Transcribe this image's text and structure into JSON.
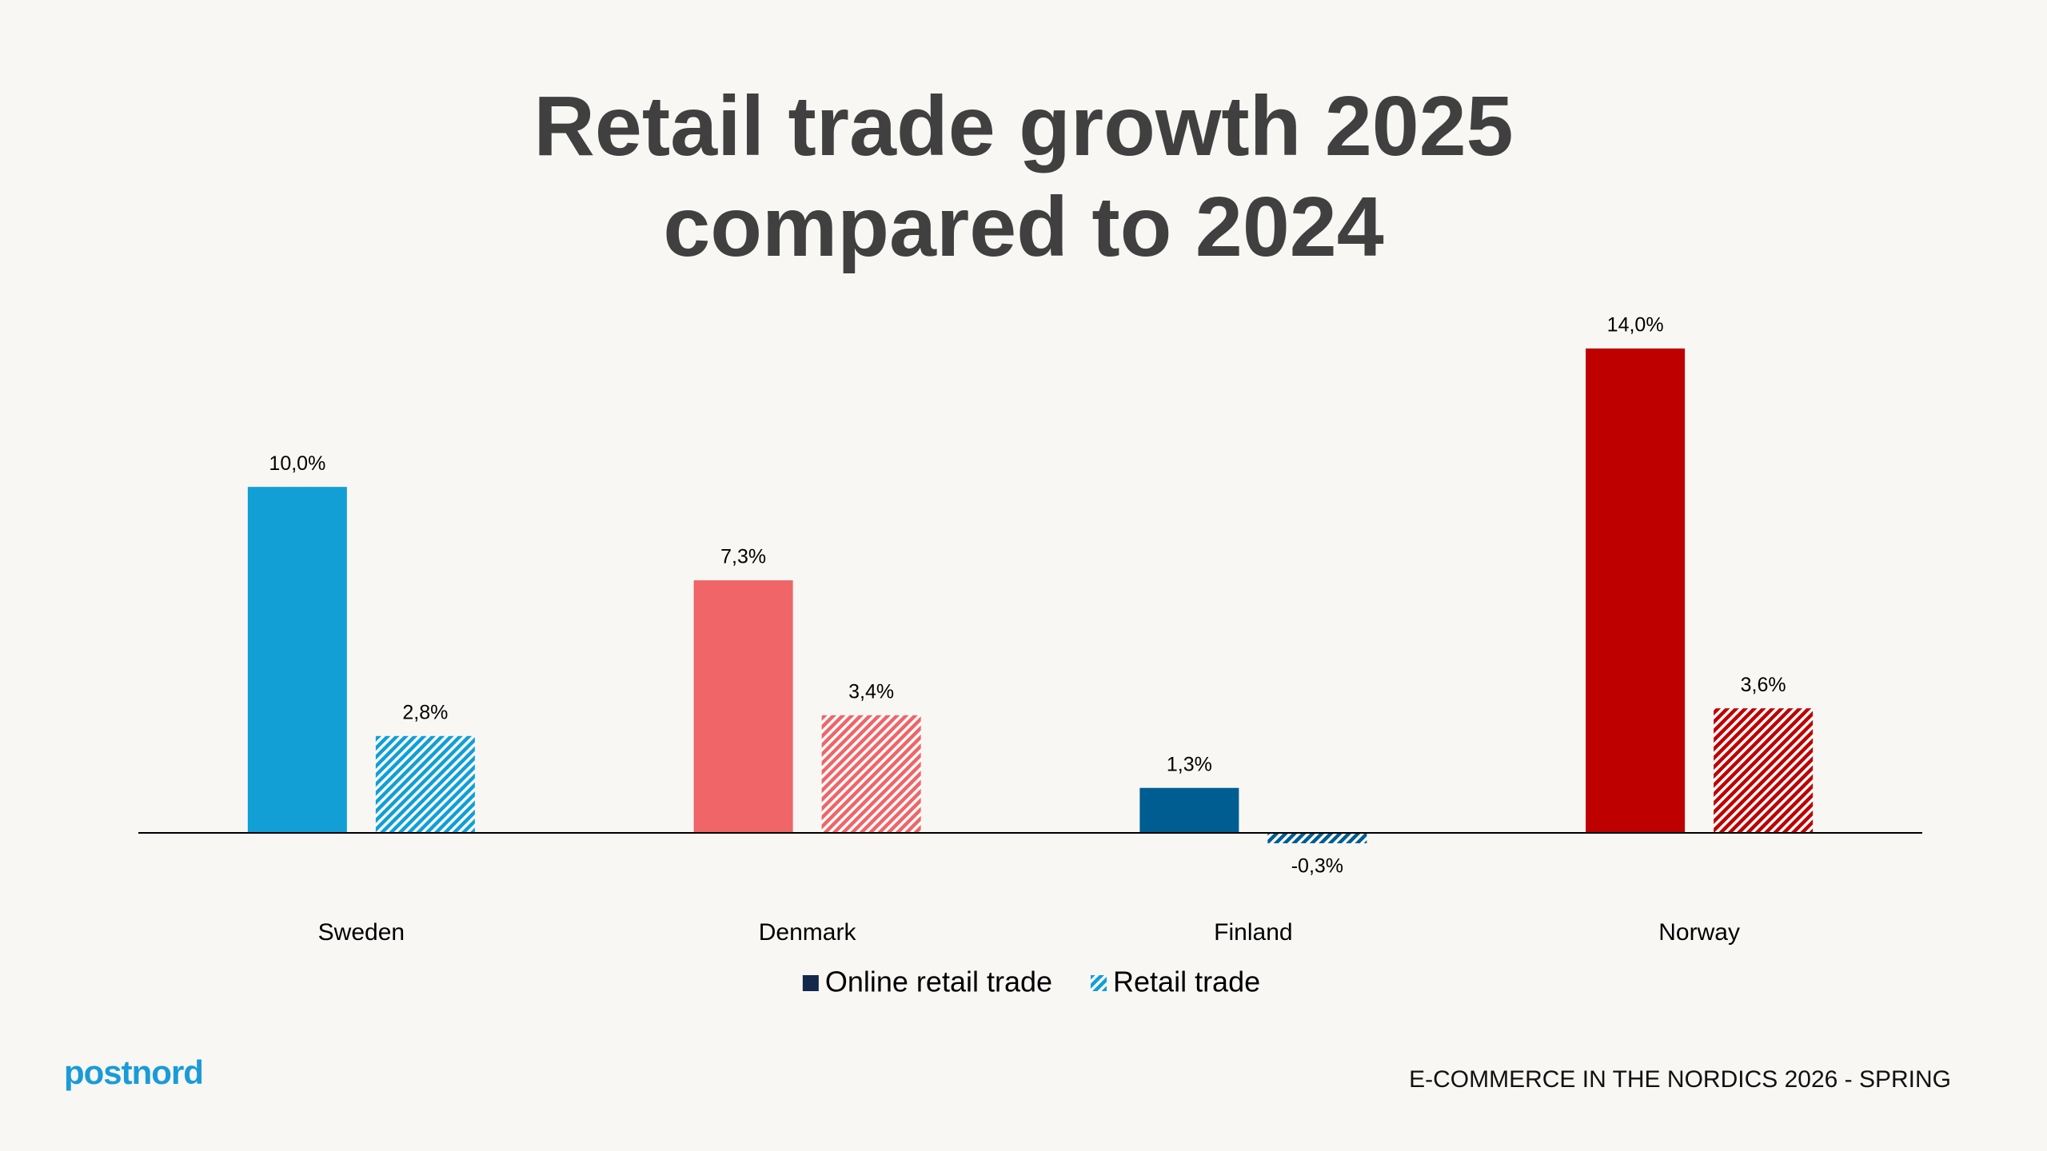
{
  "chart_data": {
    "type": "bar",
    "title": "Retail trade growth 2025 compared to 2024",
    "categories": [
      "Sweden",
      "Denmark",
      "Finland",
      "Norway"
    ],
    "series": [
      {
        "name": "Online retail trade",
        "color": "#14284b",
        "colors": [
          "#119fd6",
          "#ef6568",
          "#005d92",
          "#be0000"
        ],
        "pattern": "solid",
        "values": [
          10.0,
          7.3,
          1.3,
          14.0
        ],
        "value_labels": [
          "10,0%",
          "7,3%",
          "1,3%",
          "14,0%"
        ]
      },
      {
        "name": "Retail trade",
        "color": "#119fd6",
        "colors": [
          "#119fd6",
          "#ef6568",
          "#005d92",
          "#be0000"
        ],
        "pattern": "hatch",
        "values": [
          2.8,
          3.4,
          -0.3,
          3.6
        ],
        "value_labels": [
          "2,8%",
          "3,4%",
          "-0,3%",
          "3,6%"
        ]
      }
    ],
    "legend": "bottom"
  },
  "footer": {
    "logo": "postnord",
    "source": "E-COMMERCE IN THE NORDICS 2026 - SPRING"
  }
}
